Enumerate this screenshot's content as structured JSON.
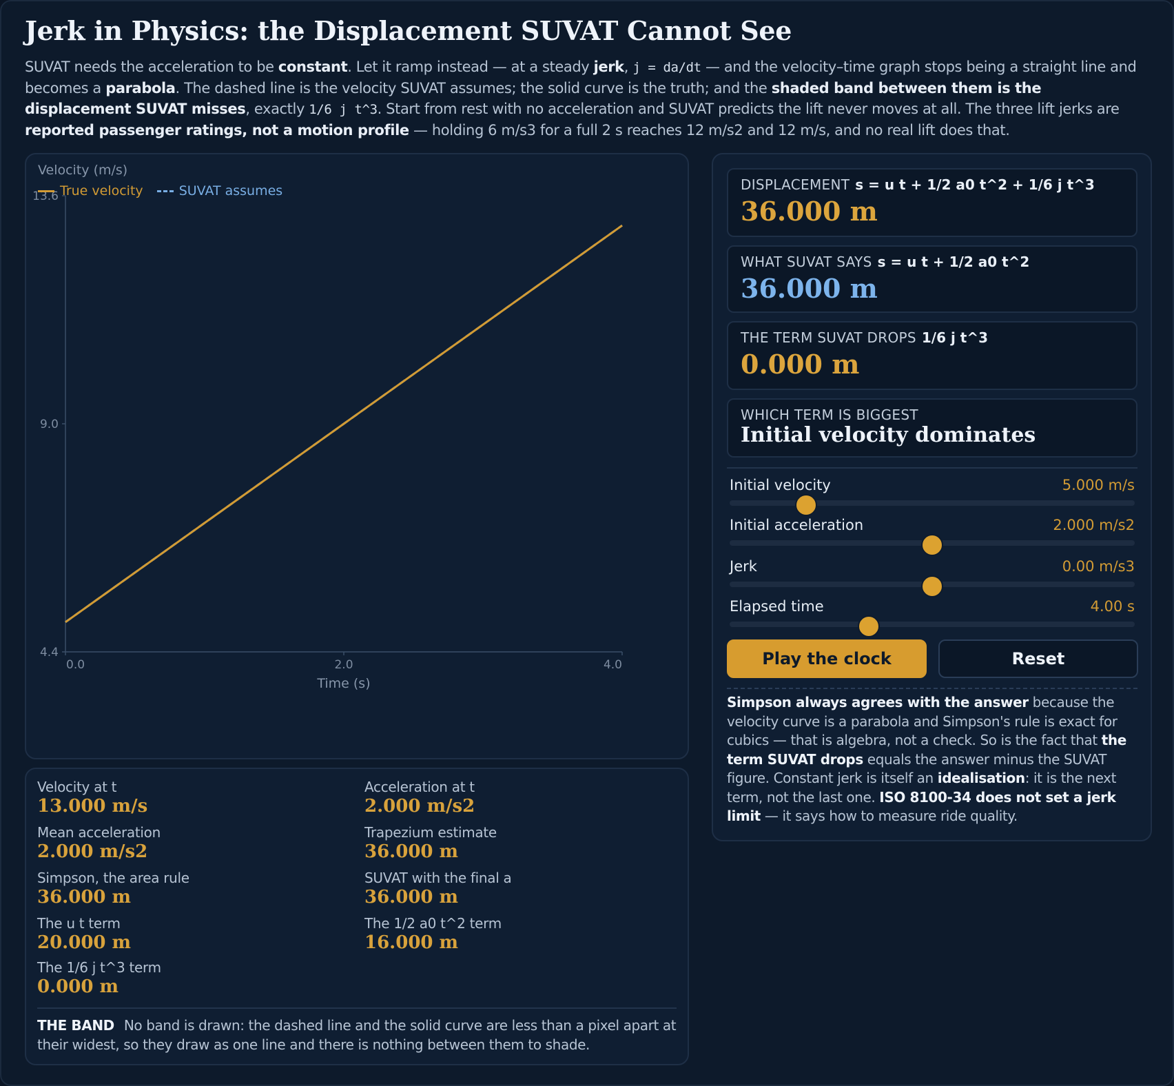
{
  "title": "Jerk in Physics: the Displacement SUVAT Cannot See",
  "intro": {
    "t1": "SUVAT needs the acceleration to be ",
    "b1": "constant",
    "t2": ". Let it ramp instead — at a steady ",
    "b2": "jerk",
    "t3": ", ",
    "c1": "j = da/dt",
    "t4": " — and the velocity–time graph stops being a straight line and becomes a ",
    "b3": "parabola",
    "t5": ". The dashed line is the velocity SUVAT assumes; the solid curve is the truth; and the ",
    "b4": "shaded band between them is the displacement SUVAT misses",
    "t6": ", exactly ",
    "c2": "1/6 j t^3",
    "t7": ". Start from rest with no acceleration and SUVAT predicts the lift never moves at all. The three lift jerks are ",
    "b5": "reported passenger ratings, not a motion profile",
    "t8": " — holding 6 m/s3 for a full 2 s reaches 12 m/s2 and 12 m/s, and no real lift does that."
  },
  "chart_data": {
    "type": "line",
    "ylabel": "Velocity (m/s)",
    "xlabel": "Time (s)",
    "legend": "top-left",
    "ylim": [
      4.4,
      13.6
    ],
    "xlim": [
      0,
      4
    ],
    "yticks": [
      "13.6",
      "9.0",
      "4.4"
    ],
    "xticks": [
      "0.0",
      "2.0",
      "4.0"
    ],
    "series": [
      {
        "name": "True velocity",
        "color": "#d29b34",
        "style": "solid",
        "x": [
          0,
          1,
          2,
          3,
          4
        ],
        "y": [
          5,
          7,
          9,
          11,
          13
        ]
      },
      {
        "name": "SUVAT assumes",
        "color": "#79aee4",
        "style": "dashed",
        "x": [
          0,
          1,
          2,
          3,
          4
        ],
        "y": [
          5,
          7,
          9,
          11,
          13
        ]
      }
    ]
  },
  "stats": {
    "velocity": {
      "label": "Velocity at t",
      "value": "13.000 m/s"
    },
    "acceleration": {
      "label": "Acceleration at t",
      "value": "2.000 m/s2"
    },
    "mean_acc": {
      "label": "Mean acceleration",
      "value": "2.000 m/s2"
    },
    "trapezium": {
      "label": "Trapezium estimate",
      "value": "36.000 m"
    },
    "simpson": {
      "label": "Simpson, the area rule",
      "value": "36.000 m"
    },
    "suvat_final": {
      "label": "SUVAT with the final a",
      "value": "36.000 m"
    },
    "ut_term": {
      "label": "The u t term",
      "value": "20.000 m"
    },
    "half_a_term": {
      "label": "The 1/2 a0 t^2 term",
      "value": "16.000 m"
    },
    "jerk_term": {
      "label": "The 1/6 j t^3 term",
      "value": "0.000 m"
    }
  },
  "band": {
    "label": "THE BAND",
    "text": "No band is drawn: the dashed line and the solid curve are less than a pixel apart at their widest, so they draw as one line and there is nothing between them to shade."
  },
  "cards": {
    "displacement": {
      "label": "DISPLACEMENT",
      "formula": "s = u t + 1/2 a0 t^2 + 1/6 j t^3",
      "value": "36.000 m"
    },
    "suvat": {
      "label": "WHAT SUVAT SAYS",
      "formula": "s = u t + 1/2 a0 t^2",
      "value": "36.000 m"
    },
    "dropped": {
      "label": "THE TERM SUVAT DROPS",
      "formula": "1/6 j t^3",
      "value": "0.000 m"
    },
    "biggest": {
      "label": "WHICH TERM IS BIGGEST",
      "value": "Initial velocity dominates"
    }
  },
  "sliders": [
    {
      "label": "Initial velocity",
      "value": "5.000 m/s",
      "fraction": 0.188
    },
    {
      "label": "Initial acceleration",
      "value": "2.000 m/s2",
      "fraction": 0.5
    },
    {
      "label": "Jerk",
      "value": "0.00 m/s3",
      "fraction": 0.5
    },
    {
      "label": "Elapsed time",
      "value": "4.00 s",
      "fraction": 0.344
    }
  ],
  "buttons": {
    "play": "Play the clock",
    "reset": "Reset"
  },
  "note": {
    "b1": "Simpson always agrees with the answer",
    "t1": " because the velocity curve is a parabola and Simpson's rule is exact for cubics — that is algebra, not a check. So is the fact that ",
    "b2": "the term SUVAT drops",
    "t2": " equals the answer minus the SUVAT figure. Constant jerk is itself an ",
    "b3": "idealisation",
    "t3": ": it is the next term, not the last one. ",
    "b4": "ISO 8100-34 does not set a jerk limit",
    "t4": " — it says how to measure ride quality."
  },
  "colors": {
    "accent": "#d29b34",
    "suvat": "#79aee4",
    "background": "#0d1a2b",
    "panel": "#0f1e32"
  }
}
